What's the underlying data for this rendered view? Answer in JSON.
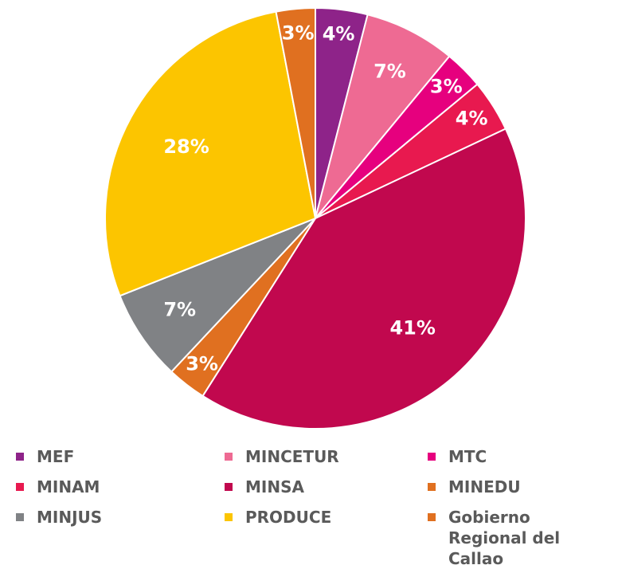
{
  "chart_data": {
    "type": "pie",
    "categories": [
      "MEF",
      "MINCETUR",
      "MTC",
      "MINAM",
      "MINSA",
      "MINEDU",
      "MINJUS",
      "PRODUCE",
      "Gobierno Regional del Callao"
    ],
    "values": [
      4,
      7,
      3,
      4,
      41,
      3,
      7,
      28,
      3
    ],
    "value_labels": [
      "4%",
      "7%",
      "3%",
      "4%",
      "41%",
      "3%",
      "7%",
      "28%",
      "3%"
    ],
    "colors": [
      "#8e2389",
      "#ee6a93",
      "#e6007e",
      "#e8194f",
      "#c1084e",
      "#e07020",
      "#808285",
      "#fcc500",
      "#e07020"
    ],
    "legend": "bottom"
  }
}
